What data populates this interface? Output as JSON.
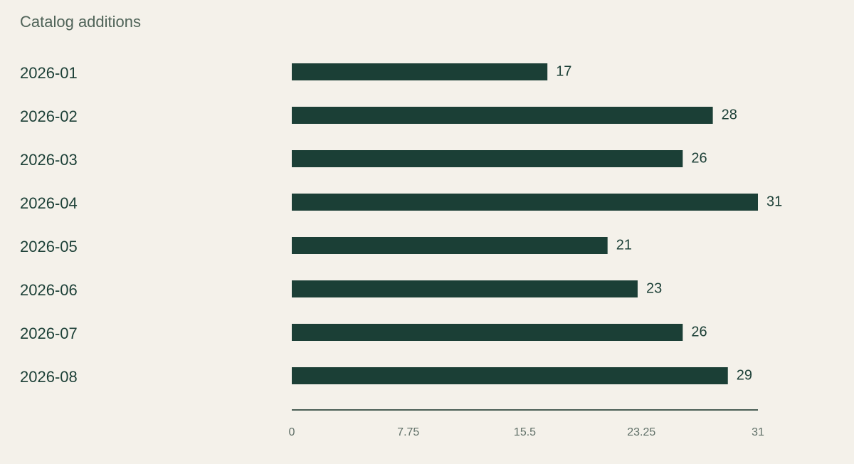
{
  "chart_data": {
    "type": "bar",
    "orientation": "horizontal",
    "title": "Catalog additions",
    "categories": [
      "2026-01",
      "2026-02",
      "2026-03",
      "2026-04",
      "2026-05",
      "2026-06",
      "2026-07",
      "2026-08"
    ],
    "values": [
      17,
      28,
      26,
      31,
      21,
      23,
      26,
      29
    ],
    "color": "#1b3f36",
    "xlim": [
      0,
      31
    ],
    "xticks": [
      0,
      7.75,
      15.5,
      23.25,
      31
    ],
    "grid": false
  }
}
